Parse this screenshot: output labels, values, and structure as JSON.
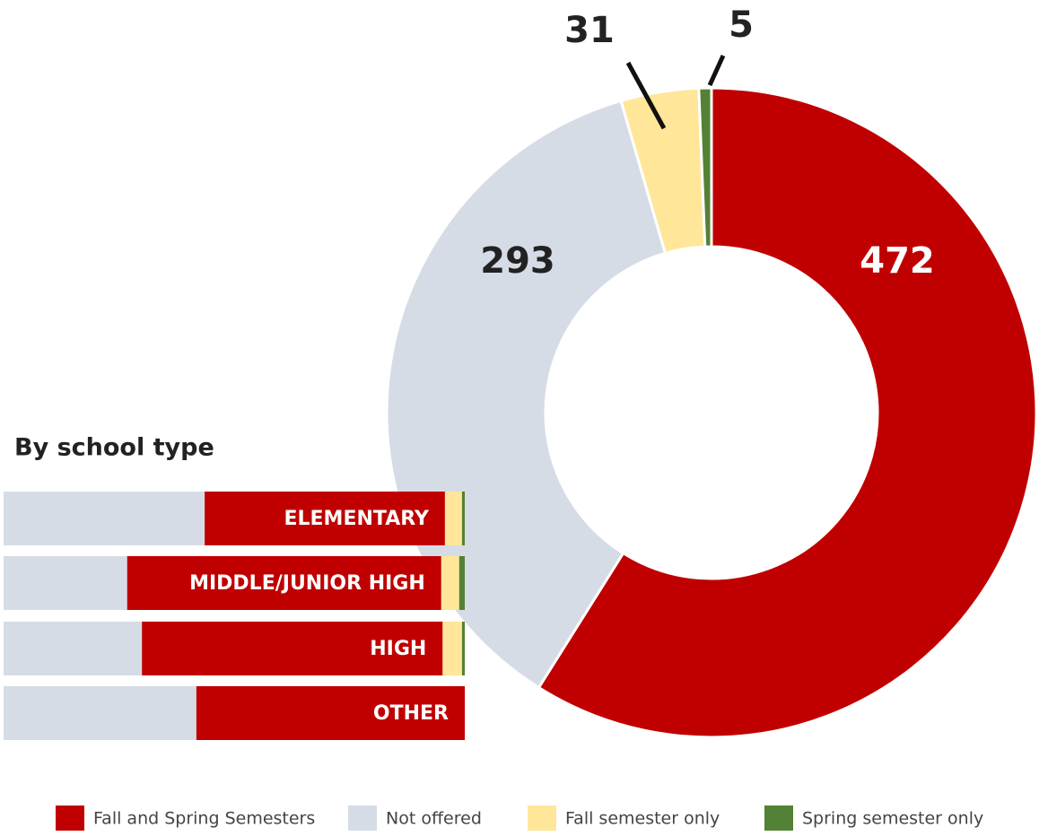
{
  "chart_data": [
    {
      "type": "pie",
      "values": [
        472,
        293,
        31,
        5
      ],
      "colors": [
        "#c00000",
        "#d6dce5",
        "#ffe699",
        "#538135"
      ]
    },
    {
      "type": "bar",
      "title": "By school type",
      "categories": [
        "ELEMENTARY",
        "MIDDLE/JUNIOR HIGH",
        "HIGH",
        "OTHER"
      ],
      "xlim": [
        0,
        100
      ],
      "series": [
        {
          "name": "Not offered",
          "color": "#d6dce5",
          "values": [
            43.6,
            26.8,
            30,
            41.8
          ]
        },
        {
          "name": "Fall and Spring Semesters",
          "color": "#c00000",
          "values": [
            52.1,
            68.1,
            65.2,
            58.2
          ]
        },
        {
          "name": "Fall semester only",
          "color": "#ffe699",
          "values": [
            3.7,
            3.9,
            4.2,
            0
          ]
        },
        {
          "name": "Spring semester only",
          "color": "#538135",
          "values": [
            0.6,
            1.2,
            0.6,
            0
          ]
        }
      ]
    }
  ]
}
